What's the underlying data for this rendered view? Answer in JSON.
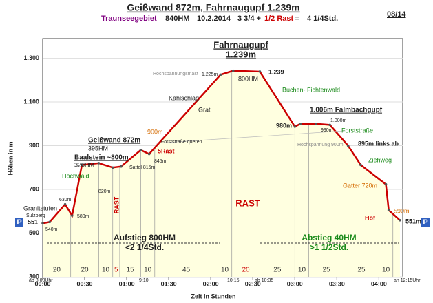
{
  "chart_data": {
    "type": "line",
    "title": "Geißwand 872m, Fahrnaugupf 1.239m",
    "subtitle": {
      "region": "Traunseegebiet",
      "ascent": "840HM",
      "date": "10.2.2014",
      "time": "3 3/4 +",
      "rest": "1/2 Rast",
      "equals": "=",
      "total": "4 1/4Std.",
      "number": "08/14"
    },
    "x_label": "Zeit in Stunden",
    "y_label": "Höhen in m",
    "x": [
      0,
      5,
      16,
      21,
      28,
      40,
      50,
      56,
      70,
      76,
      127,
      136,
      155,
      180,
      184,
      195,
      205,
      218,
      227,
      245,
      247,
      255
    ],
    "series": [
      {
        "name": "Höhe",
        "color": "#cc0000",
        "values": [
          545,
          551,
          632,
          580,
          812,
          820,
          800,
          805,
          880,
          862,
          1225,
          1243,
          1239,
          987,
          1000,
          1000,
          995,
          900,
          812,
          723,
          605,
          559
        ]
      }
    ],
    "xlim": [
      0,
      257
    ],
    "ylim": [
      300,
      1390
    ],
    "xticks": [
      {
        "value": 0,
        "label": "00:00"
      },
      {
        "value": 30,
        "label": "00:30"
      },
      {
        "value": 60,
        "label": "01:00"
      },
      {
        "value": 90,
        "label": "01:30"
      },
      {
        "value": 120,
        "label": "02:00"
      },
      {
        "value": 150,
        "label": "02:30"
      },
      {
        "value": 180,
        "label": "03:00"
      },
      {
        "value": 210,
        "label": "03:30"
      },
      {
        "value": 240,
        "label": "04:00"
      }
    ],
    "yticks": [
      300,
      500,
      700,
      900,
      {
        "value": 1100,
        "label": "1.100"
      },
      {
        "value": 1300,
        "label": "1.300"
      }
    ],
    "grid": true,
    "segments": {
      "values": [
        20,
        20,
        10,
        5,
        15,
        10,
        45,
        10,
        20,
        25,
        10,
        25,
        25,
        10
      ],
      "colors": [
        "#333",
        "#333",
        "#333",
        "#cc0000",
        "#333",
        "#333",
        "#333",
        "#333",
        "#cc0000",
        "#333",
        "#333",
        "#333",
        "#333",
        "#333"
      ]
    },
    "annotations": [
      "Fahrnaugupf",
      "1.239m",
      "Geißwand 872m",
      "395HM",
      "Baalstein ~800m",
      "320HM",
      "1.006m Falmbachgupf",
      "Aufstieg 800HM",
      "<2 1/4Std.",
      "Abstieg 40HM",
      ">1 1/2Std.",
      "RAST",
      "RAST",
      "Granitstufen",
      "Sulzberg",
      "Hochwald",
      "Kahlschlag",
      "Grat",
      "Buchen- Fichtenwald",
      "Forststraße",
      "Ziehweg",
      "Gatter 720m",
      "Hof",
      "Hochspannungsmast",
      "Hochspannung 900m",
      "895m links ab",
      "Forststraße queren",
      "900m",
      "5Rast",
      "845m",
      "Sattel 815m",
      "820m",
      "630m",
      "580m",
      "540m",
      "551",
      "551m",
      "1.225m",
      "800HM",
      "1.239",
      "980m",
      "990m",
      "1.000m",
      "590m",
      "P",
      "P",
      "ab 8:00Uhr",
      "9:10",
      "10:15",
      "ab 10:35",
      "an 12:15Uhr"
    ]
  }
}
